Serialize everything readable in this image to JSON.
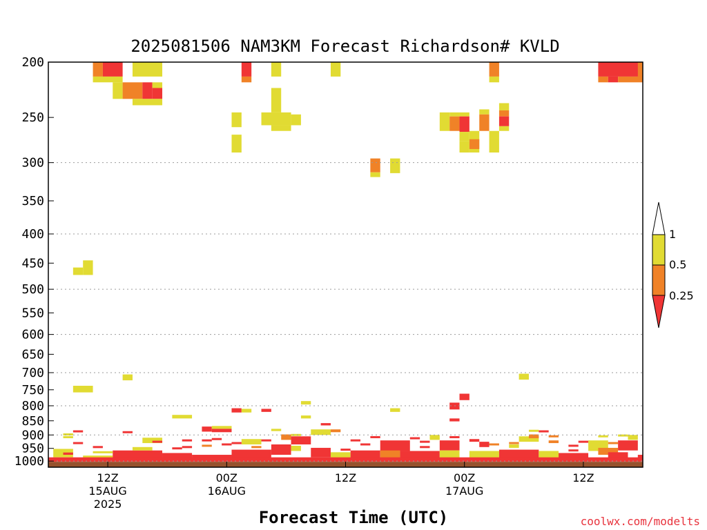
{
  "chart_data": {
    "type": "heatmap",
    "title": "2025081506 NAM3KM Forecast Richardson# KVLD",
    "xlabel": "Forecast Time (UTC)",
    "ylabel": "",
    "x_range_hours": [
      0,
      60
    ],
    "y_scale": "log-pressure",
    "y_range_hpa": [
      1025,
      200
    ],
    "y_ticks": [
      200,
      250,
      300,
      350,
      400,
      450,
      500,
      550,
      600,
      650,
      700,
      750,
      800,
      850,
      900,
      950,
      1000
    ],
    "grid_lines_hpa": [
      300,
      400,
      500,
      600,
      700,
      800,
      900,
      1000
    ],
    "x_ticks": [
      {
        "hour": 6,
        "lines": [
          "12Z",
          "15AUG",
          "2025"
        ]
      },
      {
        "hour": 18,
        "lines": [
          "00Z",
          "16AUG"
        ]
      },
      {
        "hour": 30,
        "lines": [
          "12Z"
        ]
      },
      {
        "hour": 42,
        "lines": [
          "00Z",
          "17AUG"
        ]
      },
      {
        "hour": 54,
        "lines": [
          "12Z"
        ]
      }
    ],
    "legend": {
      "placement": "right",
      "levels": [
        "1",
        "0.5",
        "0.25"
      ],
      "colors": {
        "above_1": "#ffffff",
        "0.5-1": "#e1db33",
        "0.25-0.5": "#f08227",
        "below_0.25": "#f03535"
      }
    },
    "ground": {
      "surface_pressure_hpa": 1003,
      "color": "#96522d"
    },
    "cells": [
      {
        "h0": 4.5,
        "h1": 5.5,
        "p0": 200,
        "p1": 212,
        "c": "orange"
      },
      {
        "h0": 5.5,
        "h1": 7.5,
        "p0": 200,
        "p1": 212,
        "c": "red"
      },
      {
        "h0": 4.5,
        "h1": 7.5,
        "p0": 212,
        "p1": 217,
        "c": "yellow"
      },
      {
        "h0": 8.5,
        "h1": 11.5,
        "p0": 200,
        "p1": 212,
        "c": "yellow"
      },
      {
        "h0": 6.5,
        "h1": 7.5,
        "p0": 217,
        "p1": 232,
        "c": "yellow"
      },
      {
        "h0": 7.5,
        "h1": 9.5,
        "p0": 217,
        "p1": 232,
        "c": "orange"
      },
      {
        "h0": 9.5,
        "h1": 10.5,
        "p0": 217,
        "p1": 232,
        "c": "red"
      },
      {
        "h0": 10.5,
        "h1": 11.5,
        "p0": 217,
        "p1": 222,
        "c": "yellow"
      },
      {
        "h0": 10.5,
        "h1": 11.5,
        "p0": 222,
        "p1": 232,
        "c": "red"
      },
      {
        "h0": 8.5,
        "h1": 11.5,
        "p0": 232,
        "p1": 238,
        "c": "yellow"
      },
      {
        "h0": 19.5,
        "h1": 20.5,
        "p0": 200,
        "p1": 212,
        "c": "red"
      },
      {
        "h0": 19.5,
        "h1": 20.5,
        "p0": 212,
        "p1": 217,
        "c": "orange"
      },
      {
        "h0": 22.5,
        "h1": 23.5,
        "p0": 200,
        "p1": 212,
        "c": "yellow"
      },
      {
        "h0": 28.5,
        "h1": 29.5,
        "p0": 200,
        "p1": 212,
        "c": "yellow"
      },
      {
        "h0": 22.5,
        "h1": 23.5,
        "p0": 222,
        "p1": 245,
        "c": "yellow"
      },
      {
        "h0": 21.5,
        "h1": 24.5,
        "p0": 245,
        "p1": 258,
        "c": "yellow"
      },
      {
        "h0": 22.5,
        "h1": 24.5,
        "p0": 258,
        "p1": 264,
        "c": "yellow"
      },
      {
        "h0": 24.5,
        "h1": 25.5,
        "p0": 247,
        "p1": 258,
        "c": "yellow"
      },
      {
        "h0": 18.5,
        "h1": 19.5,
        "p0": 245,
        "p1": 260,
        "c": "yellow"
      },
      {
        "h0": 18.5,
        "h1": 19.5,
        "p0": 268,
        "p1": 288,
        "c": "yellow"
      },
      {
        "h0": 32.5,
        "h1": 33.5,
        "p0": 295,
        "p1": 312,
        "c": "orange"
      },
      {
        "h0": 32.5,
        "h1": 33.5,
        "p0": 312,
        "p1": 318,
        "c": "yellow"
      },
      {
        "h0": 34.5,
        "h1": 35.5,
        "p0": 295,
        "p1": 313,
        "c": "yellow"
      },
      {
        "h0": 39.5,
        "h1": 40.5,
        "p0": 245,
        "p1": 264,
        "c": "yellow"
      },
      {
        "h0": 40.5,
        "h1": 41.5,
        "p0": 245,
        "p1": 249,
        "c": "yellow"
      },
      {
        "h0": 40.5,
        "h1": 41.5,
        "p0": 249,
        "p1": 264,
        "c": "orange"
      },
      {
        "h0": 41.5,
        "h1": 42.5,
        "p0": 245,
        "p1": 249,
        "c": "yellow"
      },
      {
        "h0": 41.5,
        "h1": 42.5,
        "p0": 249,
        "p1": 265,
        "c": "red"
      },
      {
        "h0": 41.5,
        "h1": 42.5,
        "p0": 265,
        "p1": 275,
        "c": "yellow"
      },
      {
        "h0": 42.5,
        "h1": 43.5,
        "p0": 264,
        "p1": 288,
        "c": "yellow"
      },
      {
        "h0": 41.5,
        "h1": 42.5,
        "p0": 275,
        "p1": 288,
        "c": "yellow"
      },
      {
        "h0": 43.5,
        "h1": 44.5,
        "p0": 242,
        "p1": 247,
        "c": "yellow"
      },
      {
        "h0": 43.5,
        "h1": 44.5,
        "p0": 247,
        "p1": 264,
        "c": "orange"
      },
      {
        "h0": 44.5,
        "h1": 45.5,
        "p0": 264,
        "p1": 288,
        "c": "yellow"
      },
      {
        "h0": 42.5,
        "h1": 43.5,
        "p0": 273,
        "p1": 284,
        "c": "orange"
      },
      {
        "h0": 44.5,
        "h1": 45.5,
        "p0": 200,
        "p1": 212,
        "c": "orange"
      },
      {
        "h0": 44.5,
        "h1": 45.5,
        "p0": 212,
        "p1": 217,
        "c": "yellow"
      },
      {
        "h0": 45.5,
        "h1": 46.5,
        "p0": 236,
        "p1": 243,
        "c": "yellow"
      },
      {
        "h0": 45.5,
        "h1": 46.5,
        "p0": 243,
        "p1": 249,
        "c": "orange"
      },
      {
        "h0": 45.5,
        "h1": 46.5,
        "p0": 249,
        "p1": 259,
        "c": "red"
      },
      {
        "h0": 45.5,
        "h1": 46.5,
        "p0": 259,
        "p1": 264,
        "c": "yellow"
      },
      {
        "h0": 55.5,
        "h1": 60,
        "p0": 200,
        "p1": 212,
        "c": "red"
      },
      {
        "h0": 55.5,
        "h1": 56.5,
        "p0": 212,
        "p1": 217,
        "c": "orange"
      },
      {
        "h0": 56.5,
        "h1": 57.5,
        "p0": 212,
        "p1": 217,
        "c": "red"
      },
      {
        "h0": 57.5,
        "h1": 60,
        "p0": 212,
        "p1": 217,
        "c": "orange"
      },
      {
        "h0": 59.5,
        "h1": 60,
        "p0": 200,
        "p1": 212,
        "c": "orange"
      },
      {
        "h0": 2.5,
        "h1": 3.5,
        "p0": 458,
        "p1": 472,
        "c": "yellow"
      },
      {
        "h0": 3.5,
        "h1": 4.5,
        "p0": 445,
        "p1": 472,
        "c": "yellow"
      },
      {
        "h0": 2.5,
        "h1": 4.5,
        "p0": 738,
        "p1": 758,
        "c": "yellow"
      },
      {
        "h0": 7.5,
        "h1": 8.5,
        "p0": 705,
        "p1": 722,
        "c": "yellow"
      },
      {
        "h0": 47.5,
        "h1": 48.5,
        "p0": 703,
        "p1": 720,
        "c": "yellow"
      },
      {
        "h0": 41.5,
        "h1": 42.5,
        "p0": 762,
        "p1": 782,
        "c": "red"
      },
      {
        "h0": 40.5,
        "h1": 41.5,
        "p0": 790,
        "p1": 812,
        "c": "red"
      },
      {
        "h0": 40.5,
        "h1": 41.5,
        "p0": 842,
        "p1": 852,
        "c": "red"
      },
      {
        "h0": 25.5,
        "h1": 26.5,
        "p0": 785,
        "p1": 796,
        "c": "yellow"
      },
      {
        "h0": 25.5,
        "h1": 26.5,
        "p0": 832,
        "p1": 842,
        "c": "yellow"
      },
      {
        "h0": 18.5,
        "h1": 19.5,
        "p0": 808,
        "p1": 822,
        "c": "red"
      },
      {
        "h0": 19.5,
        "h1": 20.5,
        "p0": 810,
        "p1": 822,
        "c": "yellow"
      },
      {
        "h0": 21.5,
        "h1": 22.5,
        "p0": 810,
        "p1": 820,
        "c": "red"
      },
      {
        "h0": 34.5,
        "h1": 35.5,
        "p0": 808,
        "p1": 820,
        "c": "yellow"
      },
      {
        "h0": 12.5,
        "h1": 14.5,
        "p0": 830,
        "p1": 842,
        "c": "yellow"
      },
      {
        "h0": 0.5,
        "h1": 2.5,
        "p0": 952,
        "p1": 985,
        "c": "yellow"
      },
      {
        "h0": 1.5,
        "h1": 2.5,
        "p0": 966,
        "p1": 975,
        "c": "red"
      },
      {
        "h0": 3.5,
        "h1": 6.5,
        "p0": 978,
        "p1": 993,
        "c": "yellow"
      },
      {
        "h0": 6.5,
        "h1": 11.5,
        "p0": 958,
        "p1": 998,
        "c": "red"
      },
      {
        "h0": 8.5,
        "h1": 10.5,
        "p0": 945,
        "p1": 958,
        "c": "yellow"
      },
      {
        "h0": 9.5,
        "h1": 11.5,
        "p0": 910,
        "p1": 930,
        "c": "yellow"
      },
      {
        "h0": 11.5,
        "h1": 14.5,
        "p0": 968,
        "p1": 998,
        "c": "red"
      },
      {
        "h0": 14.5,
        "h1": 18.5,
        "p0": 975,
        "p1": 998,
        "c": "red"
      },
      {
        "h0": 15.5,
        "h1": 16.5,
        "p0": 870,
        "p1": 888,
        "c": "red"
      },
      {
        "h0": 16.5,
        "h1": 18.5,
        "p0": 868,
        "p1": 878,
        "c": "yellow"
      },
      {
        "h0": 16.5,
        "h1": 18.5,
        "p0": 878,
        "p1": 890,
        "c": "red"
      },
      {
        "h0": 18.5,
        "h1": 22.5,
        "p0": 955,
        "p1": 998,
        "c": "red"
      },
      {
        "h0": 19.5,
        "h1": 21.5,
        "p0": 915,
        "p1": 935,
        "c": "yellow"
      },
      {
        "h0": 22.5,
        "h1": 24.5,
        "p0": 935,
        "p1": 975,
        "c": "red"
      },
      {
        "h0": 22.5,
        "h1": 23.5,
        "p0": 878,
        "p1": 886,
        "c": "yellow"
      },
      {
        "h0": 23.5,
        "h1": 24.5,
        "p0": 898,
        "p1": 918,
        "c": "orange"
      },
      {
        "h0": 24.5,
        "h1": 26.5,
        "p0": 905,
        "p1": 935,
        "c": "red"
      },
      {
        "h0": 24.5,
        "h1": 25.5,
        "p0": 940,
        "p1": 960,
        "c": "yellow"
      },
      {
        "h0": 26.5,
        "h1": 28.5,
        "p0": 880,
        "p1": 900,
        "c": "yellow"
      },
      {
        "h0": 26.5,
        "h1": 28.5,
        "p0": 948,
        "p1": 985,
        "c": "red"
      },
      {
        "h0": 27.5,
        "h1": 28.5,
        "p0": 858,
        "p1": 866,
        "c": "red"
      },
      {
        "h0": 28.5,
        "h1": 29.5,
        "p0": 880,
        "p1": 890,
        "c": "orange"
      },
      {
        "h0": 28.5,
        "h1": 30.5,
        "p0": 965,
        "p1": 998,
        "c": "yellow"
      },
      {
        "h0": 30.5,
        "h1": 33.5,
        "p0": 958,
        "p1": 998,
        "c": "red"
      },
      {
        "h0": 33.5,
        "h1": 36.5,
        "p0": 920,
        "p1": 960,
        "c": "red"
      },
      {
        "h0": 33.5,
        "h1": 35.5,
        "p0": 958,
        "p1": 988,
        "c": "orange"
      },
      {
        "h0": 35.5,
        "h1": 39.5,
        "p0": 960,
        "p1": 998,
        "c": "red"
      },
      {
        "h0": 38.5,
        "h1": 39.5,
        "p0": 900,
        "p1": 918,
        "c": "yellow"
      },
      {
        "h0": 39.5,
        "h1": 41.5,
        "p0": 920,
        "p1": 958,
        "c": "red"
      },
      {
        "h0": 39.5,
        "h1": 41.5,
        "p0": 958,
        "p1": 998,
        "c": "yellow"
      },
      {
        "h0": 42.5,
        "h1": 43.5,
        "p0": 915,
        "p1": 925,
        "c": "red"
      },
      {
        "h0": 43.5,
        "h1": 44.5,
        "p0": 925,
        "p1": 945,
        "c": "red"
      },
      {
        "h0": 42.5,
        "h1": 45.5,
        "p0": 960,
        "p1": 998,
        "c": "yellow"
      },
      {
        "h0": 45.5,
        "h1": 49.5,
        "p0": 955,
        "p1": 998,
        "c": "red"
      },
      {
        "h0": 46.5,
        "h1": 47.5,
        "p0": 935,
        "p1": 948,
        "c": "yellow"
      },
      {
        "h0": 47.5,
        "h1": 49.5,
        "p0": 905,
        "p1": 925,
        "c": "yellow"
      },
      {
        "h0": 48.5,
        "h1": 49.5,
        "p0": 898,
        "p1": 912,
        "c": "orange"
      },
      {
        "h0": 49.5,
        "h1": 51.5,
        "p0": 960,
        "p1": 998,
        "c": "yellow"
      },
      {
        "h0": 50.5,
        "h1": 51.5,
        "p0": 920,
        "p1": 930,
        "c": "orange"
      },
      {
        "h0": 51.5,
        "h1": 54.5,
        "p0": 968,
        "p1": 998,
        "c": "red"
      },
      {
        "h0": 54.5,
        "h1": 56.5,
        "p0": 920,
        "p1": 960,
        "c": "yellow"
      },
      {
        "h0": 55.5,
        "h1": 57.5,
        "p0": 948,
        "p1": 975,
        "c": "orange"
      },
      {
        "h0": 56.5,
        "h1": 58.5,
        "p0": 965,
        "p1": 998,
        "c": "red"
      },
      {
        "h0": 57.5,
        "h1": 59.5,
        "p0": 920,
        "p1": 958,
        "c": "red"
      },
      {
        "h0": 58.5,
        "h1": 59.5,
        "p0": 900,
        "p1": 918,
        "c": "yellow"
      },
      {
        "h0": 59.5,
        "h1": 60,
        "p0": 975,
        "p1": 998,
        "c": "red"
      },
      {
        "h0": 0,
        "h1": 60,
        "p0": 985,
        "p1": 1003,
        "c": "red"
      }
    ],
    "streaks": [
      {
        "h0": 1.5,
        "h1": 2.5,
        "p": 898,
        "c": "yellow"
      },
      {
        "h0": 1.5,
        "h1": 2.5,
        "p": 908,
        "c": "yellow"
      },
      {
        "h0": 2.5,
        "h1": 3.5,
        "p": 887,
        "c": "red"
      },
      {
        "h0": 2.5,
        "h1": 3.5,
        "p": 930,
        "c": "red"
      },
      {
        "h0": 4.5,
        "h1": 5.5,
        "p": 945,
        "c": "red"
      },
      {
        "h0": 7.5,
        "h1": 8.5,
        "p": 890,
        "c": "red"
      },
      {
        "h0": 10.5,
        "h1": 11.5,
        "p": 925,
        "c": "red"
      },
      {
        "h0": 13.5,
        "h1": 14.5,
        "p": 920,
        "c": "red"
      },
      {
        "h0": 13.5,
        "h1": 14.5,
        "p": 945,
        "c": "red"
      },
      {
        "h0": 15.5,
        "h1": 16.5,
        "p": 920,
        "c": "red"
      },
      {
        "h0": 15.5,
        "h1": 16.5,
        "p": 940,
        "c": "orange"
      },
      {
        "h0": 16.5,
        "h1": 17.5,
        "p": 915,
        "c": "red"
      },
      {
        "h0": 17.5,
        "h1": 18.5,
        "p": 935,
        "c": "red"
      },
      {
        "h0": 18.5,
        "h1": 19.5,
        "p": 930,
        "c": "red"
      },
      {
        "h0": 21.5,
        "h1": 22.5,
        "p": 920,
        "c": "red"
      },
      {
        "h0": 24.5,
        "h1": 25.5,
        "p": 900,
        "c": "yellow"
      },
      {
        "h0": 30.5,
        "h1": 31.5,
        "p": 920,
        "c": "red"
      },
      {
        "h0": 31.5,
        "h1": 32.5,
        "p": 935,
        "c": "red"
      },
      {
        "h0": 32.5,
        "h1": 33.5,
        "p": 908,
        "c": "red"
      },
      {
        "h0": 36.5,
        "h1": 37.5,
        "p": 912,
        "c": "red"
      },
      {
        "h0": 37.5,
        "h1": 38.5,
        "p": 925,
        "c": "red"
      },
      {
        "h0": 40.5,
        "h1": 41.5,
        "p": 908,
        "c": "red"
      },
      {
        "h0": 44.5,
        "h1": 45.5,
        "p": 935,
        "c": "orange"
      },
      {
        "h0": 46.5,
        "h1": 47.5,
        "p": 930,
        "c": "orange"
      },
      {
        "h0": 48.5,
        "h1": 49.5,
        "p": 885,
        "c": "yellow"
      },
      {
        "h0": 49.5,
        "h1": 50.5,
        "p": 887,
        "c": "red"
      },
      {
        "h0": 50.5,
        "h1": 51.5,
        "p": 905,
        "c": "orange"
      },
      {
        "h0": 52.5,
        "h1": 53.5,
        "p": 940,
        "c": "red"
      },
      {
        "h0": 53.5,
        "h1": 54.5,
        "p": 925,
        "c": "red"
      },
      {
        "h0": 55.5,
        "h1": 56.5,
        "p": 905,
        "c": "yellow"
      },
      {
        "h0": 56.5,
        "h1": 57.5,
        "p": 930,
        "c": "orange"
      },
      {
        "h0": 57.5,
        "h1": 58.5,
        "p": 902,
        "c": "yellow"
      },
      {
        "h0": 4.5,
        "h1": 6.5,
        "p": 965,
        "c": "yellow"
      },
      {
        "h0": 12.5,
        "h1": 13.5,
        "p": 950,
        "c": "red"
      },
      {
        "h0": 20.5,
        "h1": 21.5,
        "p": 945,
        "c": "orange"
      },
      {
        "h0": 29.5,
        "h1": 30.5,
        "p": 955,
        "c": "red"
      },
      {
        "h0": 37.5,
        "h1": 38.5,
        "p": 945,
        "c": "red"
      },
      {
        "h0": 52.5,
        "h1": 53.5,
        "p": 958,
        "c": "red"
      }
    ]
  },
  "credit": "coolwx.com/modelts"
}
